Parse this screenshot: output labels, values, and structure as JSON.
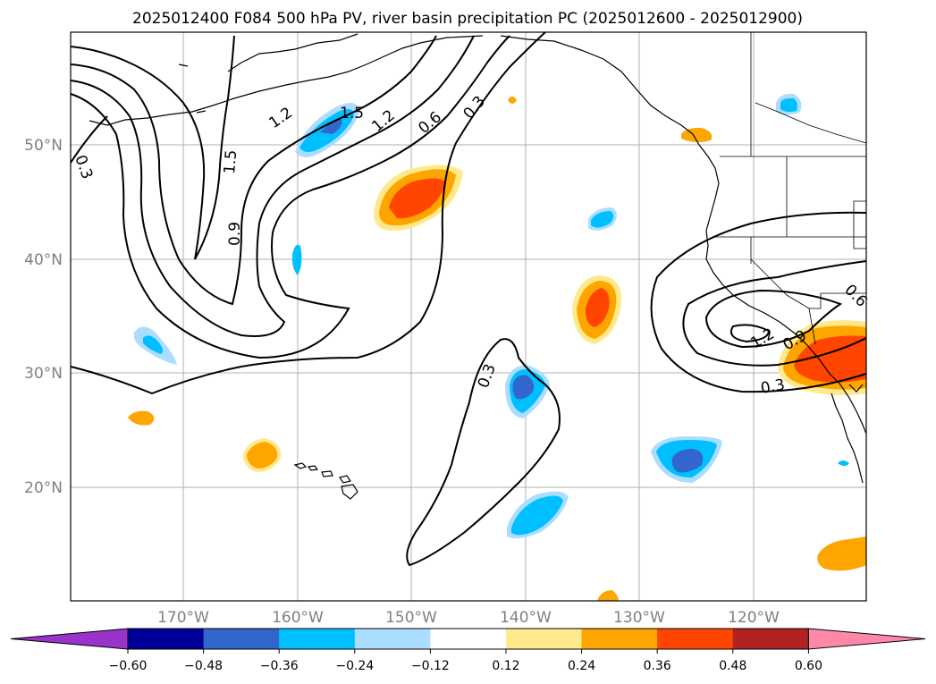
{
  "title": "2025012400 F084 500 hPa PV, river basin precipitation PC (2025012600 - 2025012900)",
  "lat_labels": [
    "50°N",
    "40°N",
    "30°N",
    "20°N"
  ],
  "lon_labels": [
    "170°W",
    "160°W",
    "150°W",
    "140°W",
    "130°W",
    "120°W"
  ],
  "colorbar": {
    "colors": [
      "#9933cc",
      "#000099",
      "#3366cc",
      "#00bfff",
      "#aaddff",
      "#ffffff",
      "#ffe98a",
      "#ffa500",
      "#ff4500",
      "#b22222",
      "#ff88aa"
    ],
    "ticks": [
      "−0.60",
      "−0.48",
      "−0.36",
      "−0.24",
      "−0.12",
      "0.12",
      "0.24",
      "0.36",
      "0.48",
      "0.60"
    ]
  },
  "contour_labels": [
    "0.3",
    "1.2",
    "1.5",
    "1.2",
    "0.6",
    "0.3",
    "1.5",
    "0.9",
    "0.3",
    "0.6",
    "1.2",
    "0.9",
    "0.3"
  ]
}
